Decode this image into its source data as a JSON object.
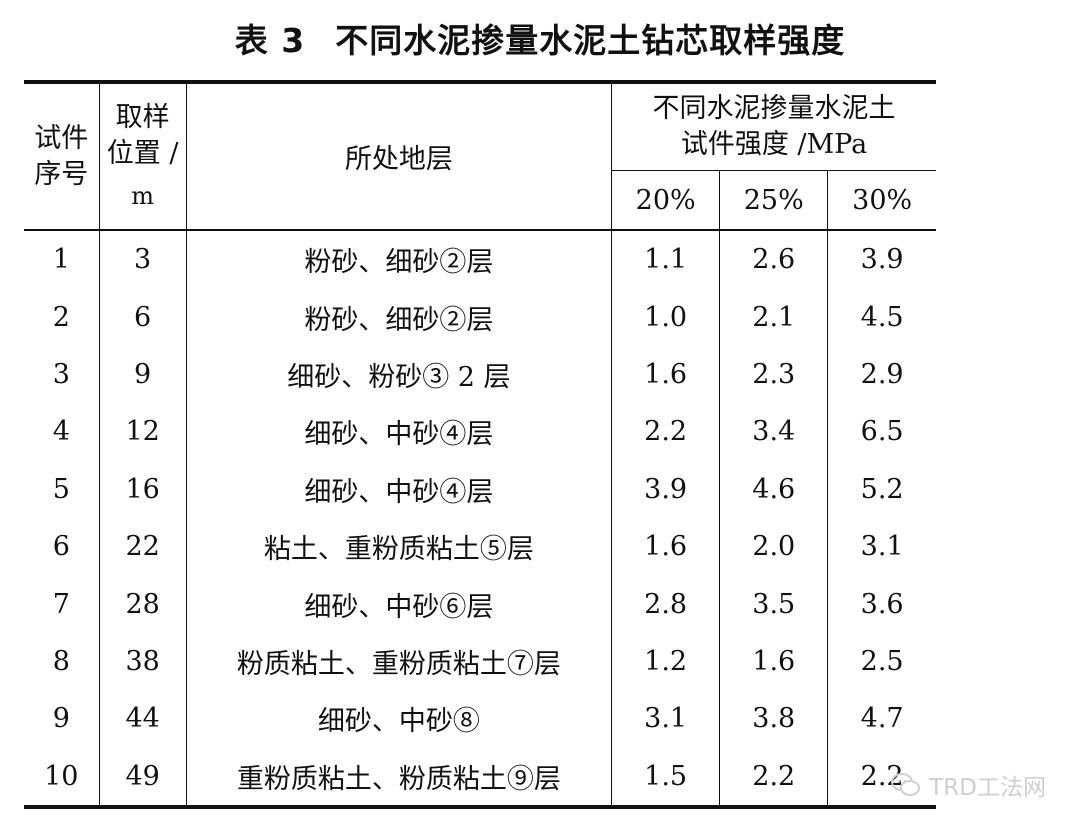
{
  "title": {
    "number": "表 3",
    "text": "不同水泥掺量水泥土钻芯取样强度"
  },
  "table": {
    "headers": {
      "id": "试件序号",
      "depth_line1": "取样",
      "depth_line2": "位置 /",
      "depth_unit": "m",
      "stratum": "所处地层",
      "strength_line1": "不同水泥掺量水泥土",
      "strength_line2": "试件强度 /MPa",
      "ratios": [
        "20%",
        "25%",
        "30%"
      ]
    },
    "rows": [
      {
        "id": "1",
        "depth": "3",
        "stratum": "粉砂、细砂②层",
        "s20": "1.1",
        "s25": "2.6",
        "s30": "3.9"
      },
      {
        "id": "2",
        "depth": "6",
        "stratum": "粉砂、细砂②层",
        "s20": "1.0",
        "s25": "2.1",
        "s30": "4.5"
      },
      {
        "id": "3",
        "depth": "9",
        "stratum": "细砂、粉砂③ 2 层",
        "s20": "1.6",
        "s25": "2.3",
        "s30": "2.9"
      },
      {
        "id": "4",
        "depth": "12",
        "stratum": "细砂、中砂④层",
        "s20": "2.2",
        "s25": "3.4",
        "s30": "6.5"
      },
      {
        "id": "5",
        "depth": "16",
        "stratum": "细砂、中砂④层",
        "s20": "3.9",
        "s25": "4.6",
        "s30": "5.2"
      },
      {
        "id": "6",
        "depth": "22",
        "stratum": "粘土、重粉质粘土⑤层",
        "s20": "1.6",
        "s25": "2.0",
        "s30": "3.1"
      },
      {
        "id": "7",
        "depth": "28",
        "stratum": "细砂、中砂⑥层",
        "s20": "2.8",
        "s25": "3.5",
        "s30": "3.6"
      },
      {
        "id": "8",
        "depth": "38",
        "stratum": "粉质粘土、重粉质粘土⑦层",
        "s20": "1.2",
        "s25": "1.6",
        "s30": "2.5"
      },
      {
        "id": "9",
        "depth": "44",
        "stratum": "细砂、中砂⑧",
        "s20": "3.1",
        "s25": "3.8",
        "s30": "4.7"
      },
      {
        "id": "10",
        "depth": "49",
        "stratum": "重粉质粘土、粉质粘土⑨层",
        "s20": "1.5",
        "s25": "2.2",
        "s30": "2.2"
      }
    ]
  },
  "watermark": {
    "text": "TRD工法网",
    "icon": "wechat-icon"
  }
}
